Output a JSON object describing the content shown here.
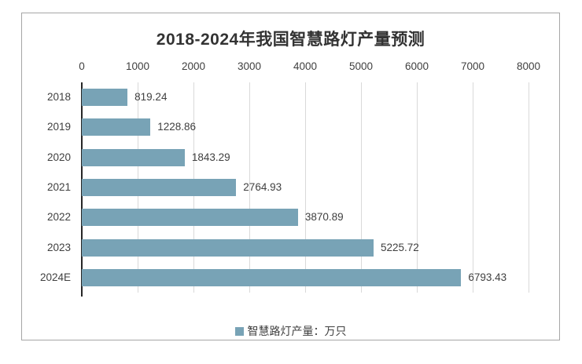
{
  "chart_data": {
    "type": "bar",
    "orientation": "horizontal",
    "title": "2018-2024年我国智慧路灯产量预测",
    "categories": [
      "2018",
      "2019",
      "2020",
      "2021",
      "2022",
      "2023",
      "2024E"
    ],
    "values": [
      819.24,
      1228.86,
      1843.29,
      2764.93,
      3870.89,
      5225.72,
      6793.43
    ],
    "value_labels": [
      "819.24",
      "1228.86",
      "1843.29",
      "2764.93",
      "3870.89",
      "5225.72",
      "6793.43"
    ],
    "x_ticks": [
      0,
      1000,
      2000,
      3000,
      4000,
      5000,
      6000,
      7000,
      8000
    ],
    "xlim": [
      0,
      8000
    ],
    "xlabel": "",
    "ylabel": "",
    "grid": "vertical",
    "legend": [
      "智慧路灯产量：万只"
    ],
    "legend_position": "bottom",
    "colors": {
      "bar": "#78a3b6",
      "gridline": "#d9d9d9",
      "axis": "#262626",
      "text": "#404040",
      "border": "#a6a6a6"
    }
  }
}
